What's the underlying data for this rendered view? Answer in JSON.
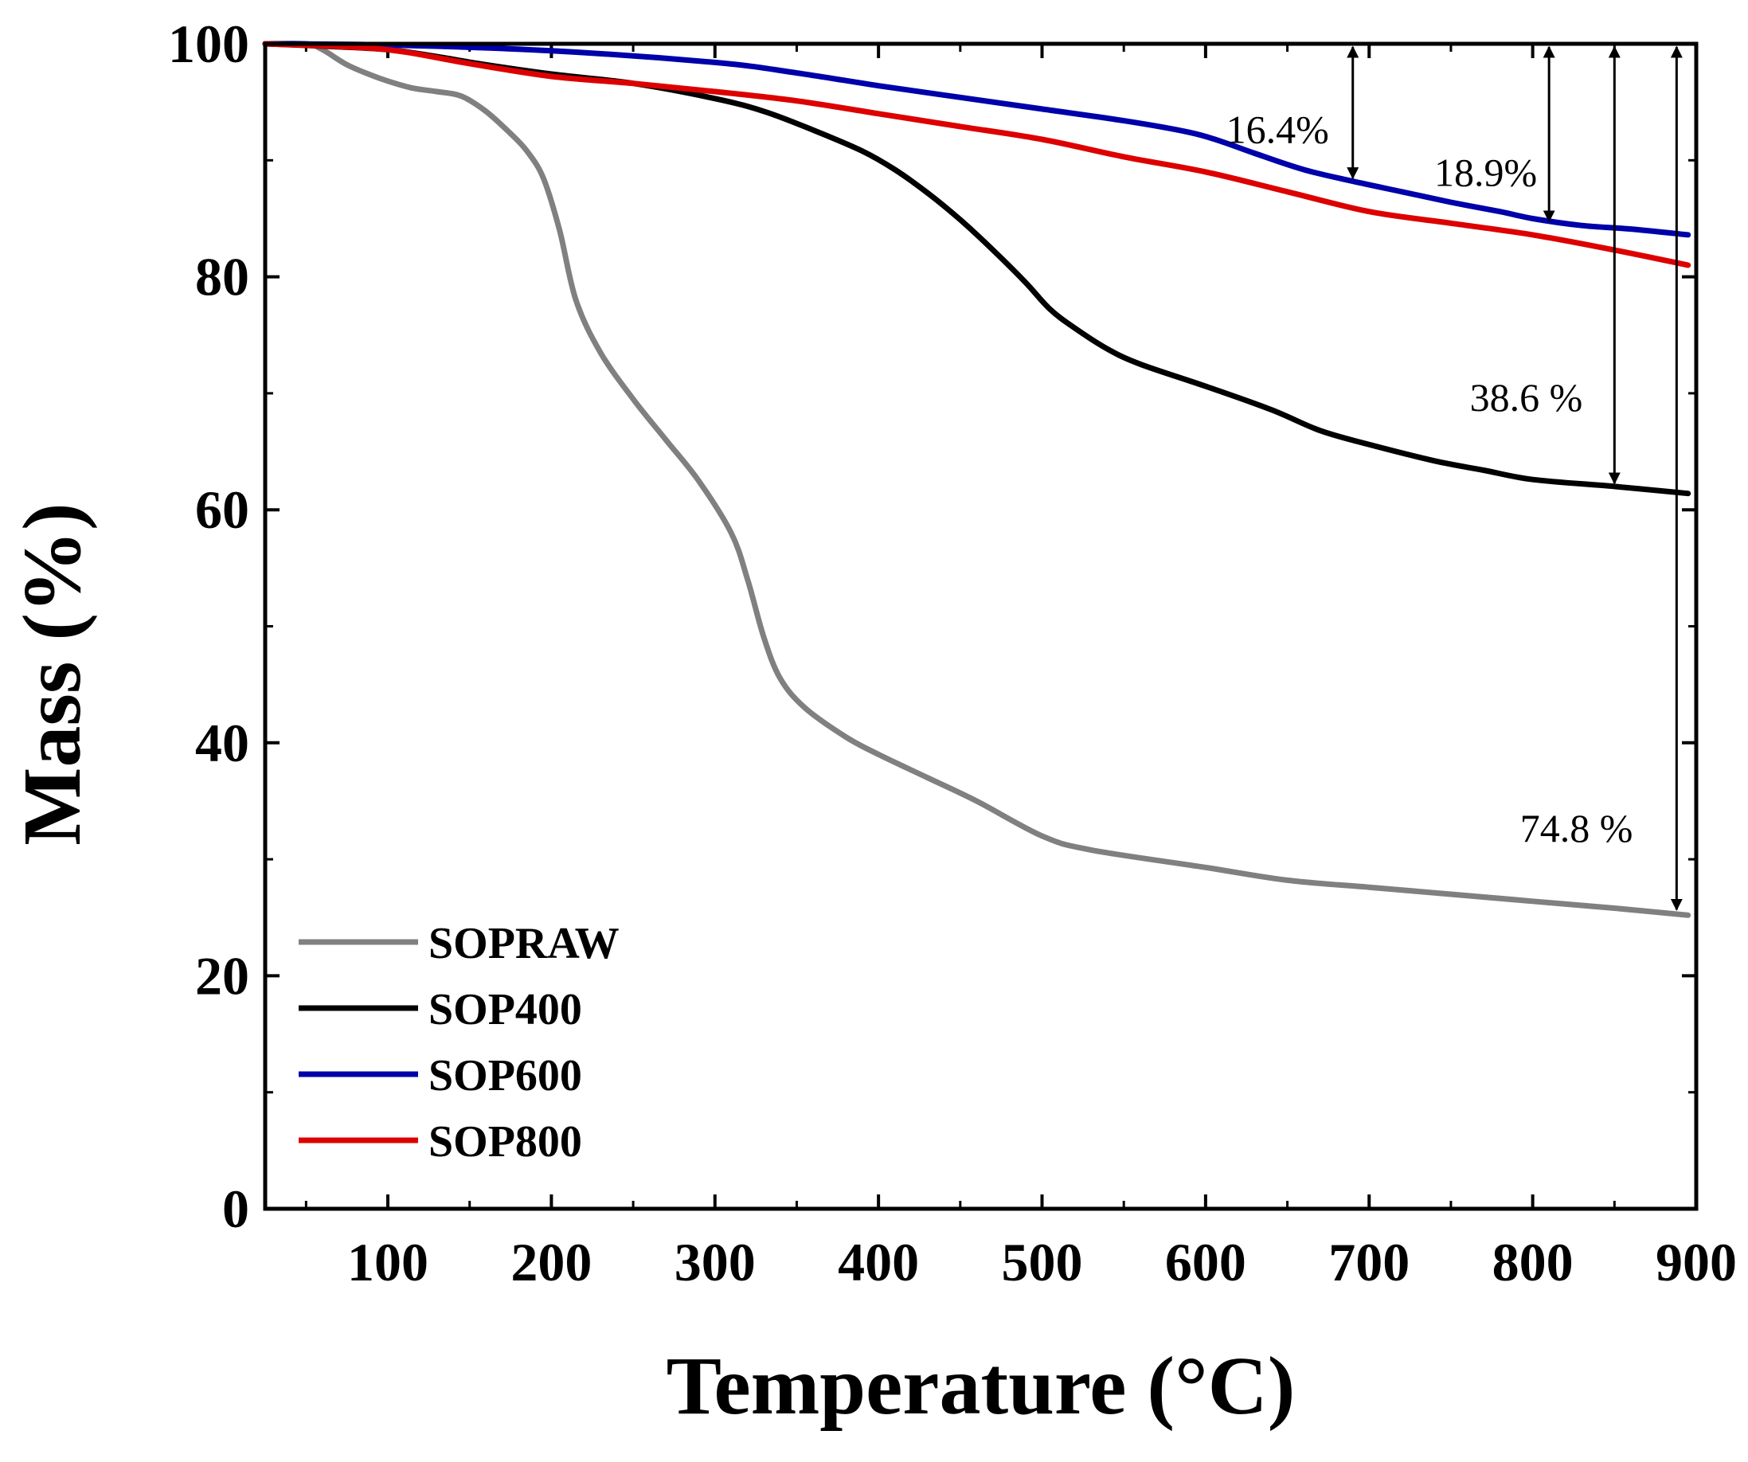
{
  "chart_data": {
    "type": "line",
    "title": "",
    "xlabel": "Temperature (°C)",
    "ylabel": "Mass (%)",
    "xlim": [
      25,
      900
    ],
    "ylim": [
      0,
      100
    ],
    "xticks": [
      100,
      200,
      300,
      400,
      500,
      600,
      700,
      800,
      900
    ],
    "yticks": [
      0,
      20,
      40,
      60,
      80,
      100
    ],
    "legend_position": "bottom-left",
    "series": [
      {
        "name": "SOPRAW",
        "color": "#808080",
        "points": [
          [
            25,
            100
          ],
          [
            50,
            100
          ],
          [
            60,
            99.5
          ],
          [
            75,
            98.2
          ],
          [
            90,
            97.3
          ],
          [
            100,
            96.8
          ],
          [
            115,
            96.2
          ],
          [
            130,
            95.9
          ],
          [
            145,
            95.5
          ],
          [
            160,
            94.2
          ],
          [
            175,
            92.3
          ],
          [
            185,
            90.8
          ],
          [
            195,
            88.5
          ],
          [
            205,
            84
          ],
          [
            215,
            78
          ],
          [
            230,
            73.5
          ],
          [
            250,
            69.5
          ],
          [
            270,
            66
          ],
          [
            290,
            62.5
          ],
          [
            310,
            58
          ],
          [
            320,
            54
          ],
          [
            330,
            49
          ],
          [
            340,
            45.5
          ],
          [
            355,
            43
          ],
          [
            380,
            40.5
          ],
          [
            400,
            39
          ],
          [
            430,
            37
          ],
          [
            460,
            35
          ],
          [
            500,
            32
          ],
          [
            530,
            30.8
          ],
          [
            600,
            29.3
          ],
          [
            650,
            28.2
          ],
          [
            700,
            27.6
          ],
          [
            750,
            27
          ],
          [
            800,
            26.4
          ],
          [
            850,
            25.8
          ],
          [
            895,
            25.2
          ]
        ]
      },
      {
        "name": "SOP400",
        "color": "#000000",
        "points": [
          [
            25,
            100
          ],
          [
            60,
            99.8
          ],
          [
            100,
            99.5
          ],
          [
            130,
            98.9
          ],
          [
            160,
            98.2
          ],
          [
            200,
            97.4
          ],
          [
            250,
            96.6
          ],
          [
            300,
            95.3
          ],
          [
            330,
            94.2
          ],
          [
            360,
            92.6
          ],
          [
            390,
            90.8
          ],
          [
            410,
            89.2
          ],
          [
            430,
            87.2
          ],
          [
            450,
            84.9
          ],
          [
            470,
            82.3
          ],
          [
            490,
            79.5
          ],
          [
            505,
            77.2
          ],
          [
            520,
            75.6
          ],
          [
            540,
            73.8
          ],
          [
            560,
            72.5
          ],
          [
            600,
            70.6
          ],
          [
            640,
            68.6
          ],
          [
            670,
            66.8
          ],
          [
            700,
            65.6
          ],
          [
            740,
            64.2
          ],
          [
            770,
            63.4
          ],
          [
            800,
            62.6
          ],
          [
            850,
            62
          ],
          [
            895,
            61.4
          ]
        ]
      },
      {
        "name": "SOP600",
        "color": "#0000aa",
        "points": [
          [
            25,
            100
          ],
          [
            100,
            99.9
          ],
          [
            200,
            99.4
          ],
          [
            300,
            98.4
          ],
          [
            350,
            97.5
          ],
          [
            400,
            96.4
          ],
          [
            450,
            95.4
          ],
          [
            500,
            94.4
          ],
          [
            550,
            93.4
          ],
          [
            590,
            92.4
          ],
          [
            610,
            91.6
          ],
          [
            630,
            90.6
          ],
          [
            660,
            89.2
          ],
          [
            690,
            88.2
          ],
          [
            720,
            87.3
          ],
          [
            750,
            86.4
          ],
          [
            780,
            85.6
          ],
          [
            800,
            85
          ],
          [
            830,
            84.4
          ],
          [
            860,
            84.1
          ],
          [
            895,
            83.6
          ]
        ]
      },
      {
        "name": "SOP800",
        "color": "#dd0000",
        "points": [
          [
            25,
            100
          ],
          [
            80,
            99.7
          ],
          [
            110,
            99.3
          ],
          [
            150,
            98.3
          ],
          [
            200,
            97.2
          ],
          [
            250,
            96.6
          ],
          [
            300,
            95.9
          ],
          [
            350,
            95.1
          ],
          [
            400,
            94
          ],
          [
            450,
            92.9
          ],
          [
            500,
            91.8
          ],
          [
            550,
            90.3
          ],
          [
            600,
            89
          ],
          [
            650,
            87.3
          ],
          [
            700,
            85.6
          ],
          [
            750,
            84.6
          ],
          [
            800,
            83.6
          ],
          [
            850,
            82.3
          ],
          [
            895,
            81
          ]
        ]
      }
    ],
    "annotations": [
      {
        "label": "16.4%",
        "x": 690,
        "from": 100,
        "to": 88.2
      },
      {
        "label": "18.9%",
        "x": 810,
        "from": 100,
        "to": 84.5
      },
      {
        "label": "38.6 %",
        "x": 850,
        "from": 100,
        "to": 62
      },
      {
        "label": "74.8 %",
        "x": 888,
        "from": 100,
        "to": 25.4
      }
    ]
  }
}
